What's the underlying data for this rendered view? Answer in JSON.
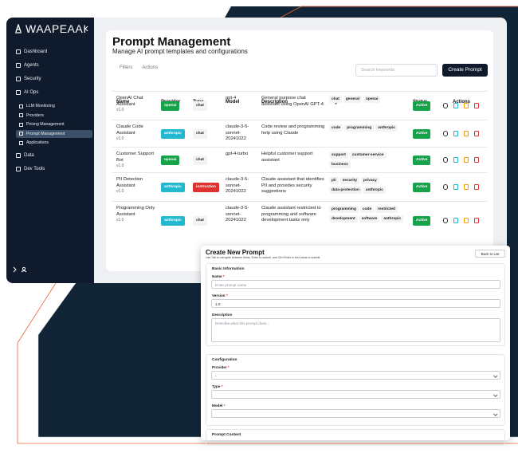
{
  "sidebar": {
    "brand": "WAAPEAAI",
    "items": [
      {
        "label": "Dashboard"
      },
      {
        "label": "Agents"
      },
      {
        "label": "Security"
      },
      {
        "label": "AI Ops",
        "children": [
          {
            "label": "LLM Monitoring"
          },
          {
            "label": "Providers"
          },
          {
            "label": "Pricing Management"
          },
          {
            "label": "Prompt Management",
            "active": true
          },
          {
            "label": "Applications"
          }
        ]
      },
      {
        "label": "Data"
      },
      {
        "label": "Dev Tools"
      }
    ]
  },
  "header": {
    "title": "Prompt Management",
    "subtitle": "Manage AI prompt templates and configurations"
  },
  "toolbar": {
    "filters": "Filters",
    "actions": "Actions",
    "search_placeholder": "Search keywords",
    "create_button": "Create Prompt"
  },
  "table": {
    "columns": [
      "Name",
      "Provider",
      "Type",
      "Model",
      "Description",
      "Tags",
      "Status",
      "Actions"
    ],
    "rows": [
      {
        "name": "OpenAI Chat Assistant",
        "version": "v1.0",
        "provider": "openai",
        "provider_color": "#16a34a",
        "type": "chat",
        "type_color": "#f1f3f5",
        "model": "gpt-4",
        "description": "General purpose chat assistant using OpenAI GPT-4",
        "tags": [
          "chat",
          "general",
          "openai"
        ],
        "status": "Active"
      },
      {
        "name": "Claude Code Assistant",
        "version": "v1.0",
        "provider": "anthropic",
        "provider_color": "#22b8cf",
        "type": "chat",
        "type_color": "#f1f3f5",
        "model": "claude-3-5-sonnet-20241022",
        "description": "Code review and programming help using Claude",
        "tags": [
          "code",
          "programming",
          "anthropic"
        ],
        "status": "Active"
      },
      {
        "name": "Customer Support Bot",
        "version": "v1.0",
        "provider": "openai",
        "provider_color": "#16a34a",
        "type": "chat",
        "type_color": "#f1f3f5",
        "model": "gpt-4-turbo",
        "description": "Helpful customer support assistant",
        "tags": [
          "support",
          "customer-service",
          "business"
        ],
        "status": "Active"
      },
      {
        "name": "PII Detection Assistant",
        "version": "v1.0",
        "provider": "anthropic",
        "provider_color": "#22b8cf",
        "type": "instruction",
        "type_color": "#e03131",
        "model": "claude-3-5-sonnet-20241022",
        "description": "Claude assistant that identifies PII and provides security suggestions",
        "tags": [
          "pii",
          "security",
          "privacy",
          "data-protection",
          "anthropic"
        ],
        "status": "Active"
      },
      {
        "name": "Programming Only Assistant",
        "version": "v1.0",
        "provider": "anthropic",
        "provider_color": "#22b8cf",
        "type": "chat",
        "type_color": "#f1f3f5",
        "model": "claude-3-5-sonnet-20241022",
        "description": "Claude assistant restricted to programming and software development tasks only",
        "tags": [
          "programming",
          "code",
          "restricted",
          "development",
          "software",
          "anthropic"
        ],
        "status": "Active"
      }
    ]
  },
  "modal": {
    "title": "Create New Prompt",
    "subtitle": "Use Tab to navigate between fields, Enter to submit, and Ctrl+Enter in text areas to submit.",
    "back_button": "Back to List",
    "sections": [
      {
        "title": "Basic Information",
        "fields": [
          {
            "label": "Name",
            "required_mark": "*",
            "placeholder": "Enter prompt name"
          },
          {
            "label": "Version",
            "required_mark": "*",
            "value": "1.0"
          },
          {
            "label": "Description",
            "placeholder": "Describe what this prompt does..."
          }
        ]
      },
      {
        "title": "Configuration",
        "fields": [
          {
            "label": "Provider",
            "required_mark": "*",
            "value": "-"
          },
          {
            "label": "Type",
            "required_mark": "*"
          },
          {
            "label": "Model",
            "required_mark": "*"
          }
        ]
      },
      {
        "title": "Prompt Content"
      }
    ]
  }
}
